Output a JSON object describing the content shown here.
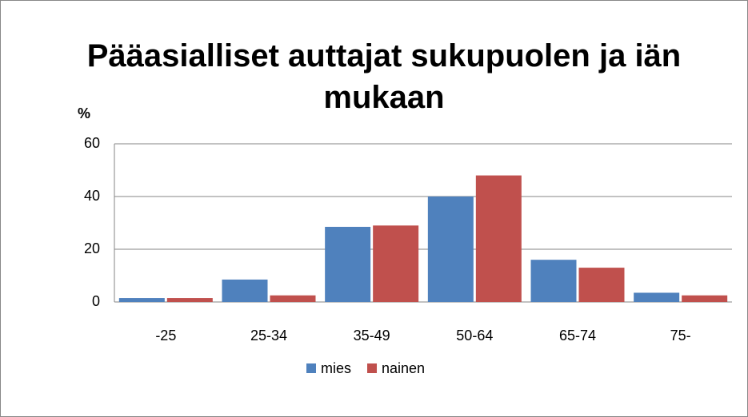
{
  "chart_data": {
    "type": "bar",
    "title": "Pääasialliset auttajat sukupuolen ja iän mukaan",
    "y_label": "%",
    "categories": [
      "-25",
      "25-34",
      "35-49",
      "50-64",
      "65-74",
      "75-"
    ],
    "series": [
      {
        "name": "mies",
        "color": "#4f81bd",
        "values": [
          1.5,
          8.5,
          28.5,
          40,
          16,
          3.5
        ]
      },
      {
        "name": "nainen",
        "color": "#c0504d",
        "values": [
          1.5,
          2.5,
          29,
          48,
          13,
          2.5
        ]
      }
    ],
    "ylim": [
      0,
      60
    ],
    "yticks": [
      0,
      20,
      40,
      60
    ],
    "grid": true,
    "legend": "bottom"
  }
}
